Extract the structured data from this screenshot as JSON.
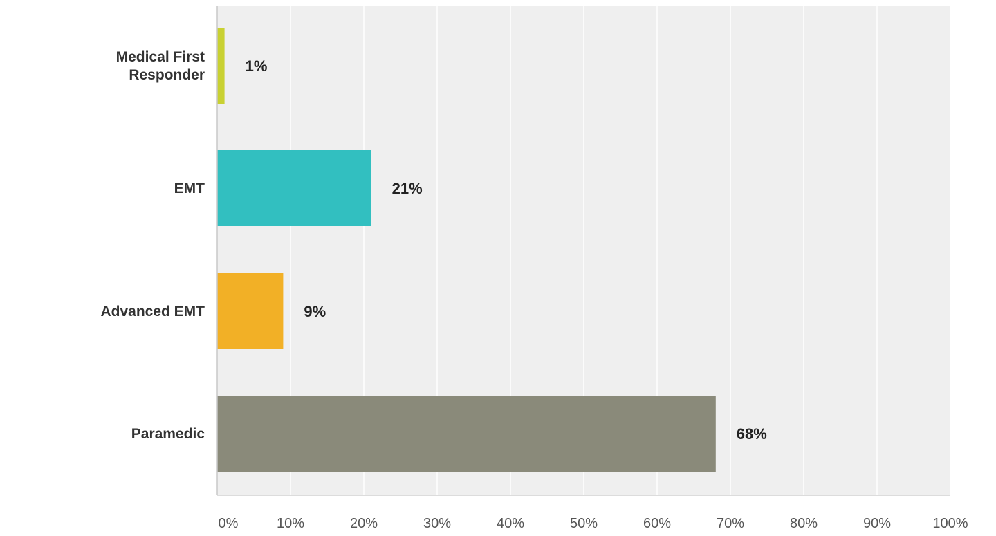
{
  "chart_data": {
    "type": "bar",
    "orientation": "horizontal",
    "categories": [
      "Medical First Responder",
      "EMT",
      "Advanced EMT",
      "Paramedic"
    ],
    "category_label_lines": [
      [
        "Medical First",
        "Responder"
      ],
      [
        "EMT"
      ],
      [
        "Advanced EMT"
      ],
      [
        "Paramedic"
      ]
    ],
    "values": [
      1,
      21,
      9,
      68
    ],
    "value_labels": [
      "1%",
      "21%",
      "9%",
      "68%"
    ],
    "bar_colors": [
      "#c9d132",
      "#32bfc0",
      "#f2b026",
      "#8a8a7a"
    ],
    "xlim": [
      0,
      100
    ],
    "x_ticks": [
      0,
      10,
      20,
      30,
      40,
      50,
      60,
      70,
      80,
      90,
      100
    ],
    "x_tick_labels": [
      "0%",
      "10%",
      "20%",
      "30%",
      "40%",
      "50%",
      "60%",
      "70%",
      "80%",
      "90%",
      "100%"
    ],
    "grid": true,
    "background_color": "#efefef",
    "grid_color": "#ffffff",
    "title": "",
    "xlabel": "",
    "ylabel": ""
  }
}
